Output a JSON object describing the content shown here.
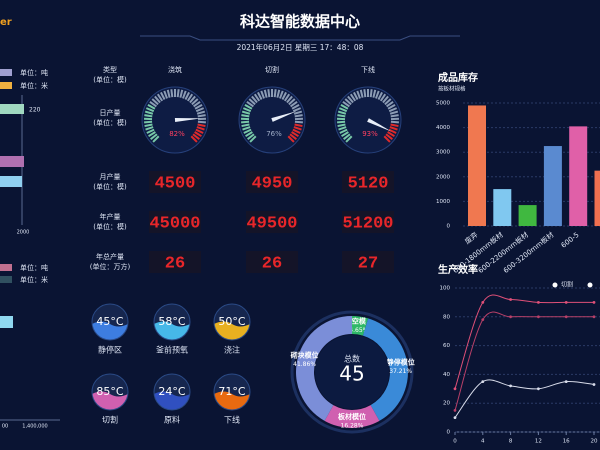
{
  "header": {
    "logo": "er",
    "title": "科达智能数据中心",
    "datetime": "2021年06月2日 星期三 17：48：08"
  },
  "left_panel": {
    "top_legend": [
      "单位：吨",
      "单位：米"
    ],
    "top_bar_label": "220",
    "top_axis_label": "2000",
    "bottom_legend": [
      "单位：吨",
      "单位：米"
    ],
    "bottom_axis_labels": [
      "00",
      "1,400,000"
    ]
  },
  "production": {
    "corner": {
      "label": "类型",
      "unit": "(单位：模)"
    },
    "columns": [
      "浇筑",
      "切割",
      "下线"
    ],
    "daily": {
      "label": "日产量",
      "unit": "(单位：模)",
      "values": [
        82,
        76,
        93
      ],
      "value_labels": [
        "82%",
        "76%",
        "93%"
      ]
    },
    "monthly": {
      "label": "月产量",
      "unit": "(单位：模)",
      "values": [
        4500,
        4950,
        5120
      ]
    },
    "yearly": {
      "label": "年产量",
      "unit": "(单位：模)",
      "values": [
        45000,
        49500,
        51200
      ]
    },
    "total": {
      "label": "年总产量",
      "unit": "(单位：万方)",
      "values": [
        26,
        26,
        27
      ]
    }
  },
  "temperatures": [
    {
      "value": "45°C",
      "label": "静停区",
      "color": "#3d7de0"
    },
    {
      "value": "58°C",
      "label": "釜前预氧",
      "color": "#46b8e8"
    },
    {
      "value": "50°C",
      "label": "浇注",
      "color": "#e8b020"
    },
    {
      "value": "85°C",
      "label": "切割",
      "color": "#d060b0"
    },
    {
      "value": "24°C",
      "label": "原料",
      "color": "#3050c0"
    },
    {
      "value": "71°C",
      "label": "下线",
      "color": "#e86a10"
    }
  ],
  "chart_data": [
    {
      "type": "bar",
      "title": "成品库存",
      "subtitle": "按板材规格",
      "categories": [
        "废弃",
        "600-1800mm板材",
        "600-2200mm板材",
        "600-3200mm板材",
        "600-5",
        null
      ],
      "values": [
        4900,
        1500,
        850,
        3250,
        4050,
        2250
      ],
      "colors": [
        "#f07850",
        "#80c8f0",
        "#40b840",
        "#5a8ad0",
        "#e060a8",
        "#f07050"
      ],
      "ylim": [
        0,
        5000
      ],
      "yticks": [
        0,
        1000,
        2000,
        3000,
        4000,
        5000
      ],
      "grid": true
    },
    {
      "type": "line",
      "title": "生产效率",
      "x": [
        0,
        4,
        8,
        12,
        16,
        20
      ],
      "series": [
        {
          "color": "#e05078",
          "values": [
            30,
            90,
            92,
            90,
            90,
            90
          ]
        },
        {
          "color": "#b84068",
          "values": [
            15,
            78,
            80,
            80,
            80,
            80
          ]
        },
        {
          "name": "切割",
          "color": "#d8dcea",
          "values": [
            10,
            35,
            32,
            30,
            35,
            33
          ]
        }
      ],
      "xlim": [
        0,
        20
      ],
      "xticks": [
        0,
        4,
        8,
        12,
        16,
        20
      ],
      "ylim": [
        0,
        100
      ],
      "yticks": [
        0,
        20,
        40,
        60,
        80,
        100
      ],
      "grid": true
    },
    {
      "type": "pie",
      "center_label": "总数",
      "center_value": 45,
      "categories": [
        "空模",
        "静停模位",
        "板材模位",
        "砌块模位"
      ],
      "values": [
        4.65,
        37.21,
        16.28,
        41.86
      ],
      "value_labels": [
        "4.65%",
        "37.21%",
        "16.28%",
        "41.86%"
      ],
      "colors": [
        "#2fb868",
        "#3a8ad8",
        "#d060b0",
        "#7b8ed8"
      ]
    }
  ]
}
